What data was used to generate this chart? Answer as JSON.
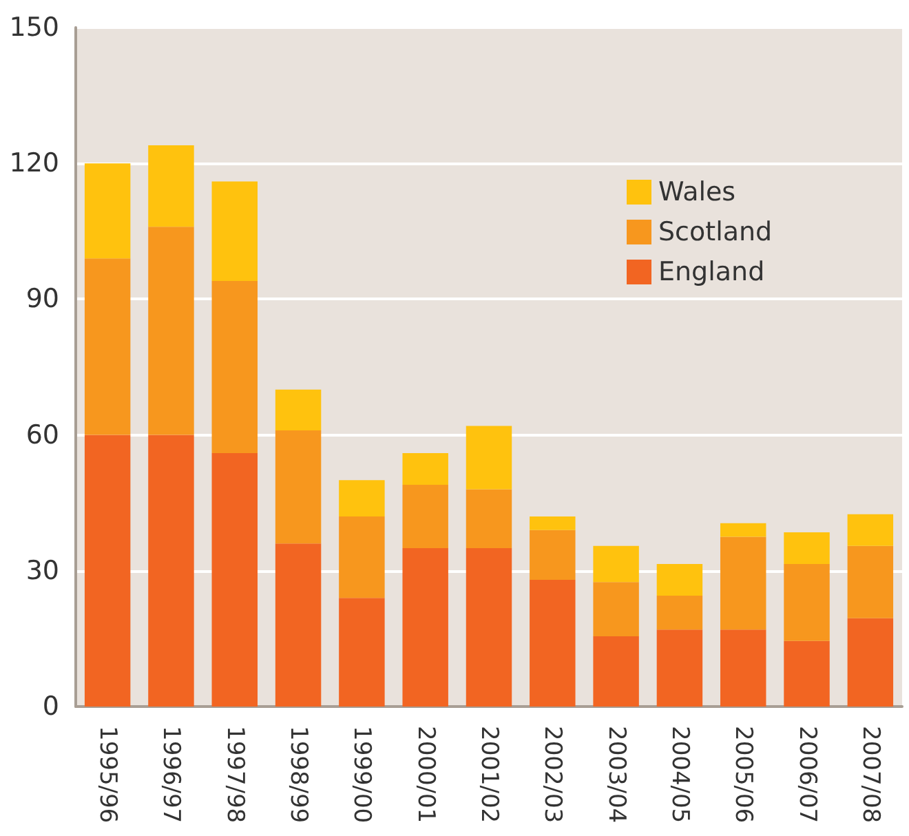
{
  "chart_data": {
    "type": "bar",
    "stacked": true,
    "categories": [
      "1995/96",
      "1996/97",
      "1997/98",
      "1998/99",
      "1999/00",
      "2000/01",
      "2001/02",
      "2002/03",
      "2003/04",
      "2004/05",
      "2005/06",
      "2006/07",
      "2007/08"
    ],
    "series": [
      {
        "name": "England",
        "color": "#f26522",
        "values": [
          60,
          60,
          56,
          36,
          24,
          35,
          35,
          28,
          15.5,
          17,
          17,
          14.5,
          19.5
        ]
      },
      {
        "name": "Scotland",
        "color": "#f7971e",
        "values": [
          39,
          46,
          38,
          25,
          18,
          14,
          13,
          11,
          12,
          7.5,
          20.5,
          17,
          16
        ]
      },
      {
        "name": "Wales",
        "color": "#ffc20e",
        "values": [
          21,
          18,
          22,
          9,
          8,
          7,
          14,
          3,
          8,
          7,
          3,
          7,
          7
        ]
      }
    ],
    "ylim": [
      0,
      150
    ],
    "yticks": [
      0,
      30,
      60,
      90,
      120,
      150
    ],
    "grid": "y",
    "legend": "top right"
  }
}
